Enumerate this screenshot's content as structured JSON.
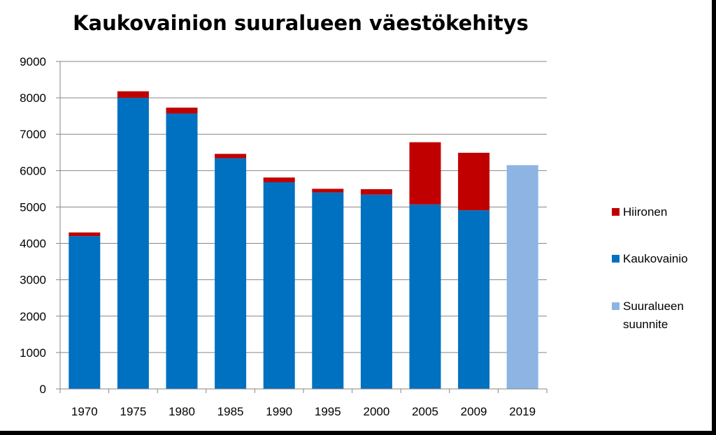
{
  "chart_data": {
    "type": "bar",
    "stacked": true,
    "title": "Kaukovainion suuralueen väestökehitys",
    "categories": [
      "1970",
      "1975",
      "1980",
      "1985",
      "1990",
      "1995",
      "2000",
      "2005",
      "2009",
      "2019"
    ],
    "ylim": [
      0,
      9000
    ],
    "yticks": [
      0,
      1000,
      2000,
      3000,
      4000,
      5000,
      6000,
      7000,
      8000,
      9000
    ],
    "grid": true,
    "legend_position": "right",
    "series": [
      {
        "name": "Kaukovainio",
        "color": "#0070C0",
        "values": [
          4200,
          8000,
          7570,
          6340,
          5680,
          5400,
          5340,
          5070,
          4910,
          0
        ]
      },
      {
        "name": "Hiironen",
        "color": "#C00000",
        "values": [
          100,
          180,
          160,
          120,
          130,
          100,
          150,
          1710,
          1580,
          0
        ]
      },
      {
        "name": "Suuralueen suunnite",
        "name_lines": [
          "Suuralueen",
          "suunnite"
        ],
        "color": "#8DB4E2",
        "values": [
          0,
          0,
          0,
          0,
          0,
          0,
          0,
          0,
          0,
          6150
        ]
      }
    ],
    "legend_order": [
      1,
      0,
      2
    ]
  }
}
